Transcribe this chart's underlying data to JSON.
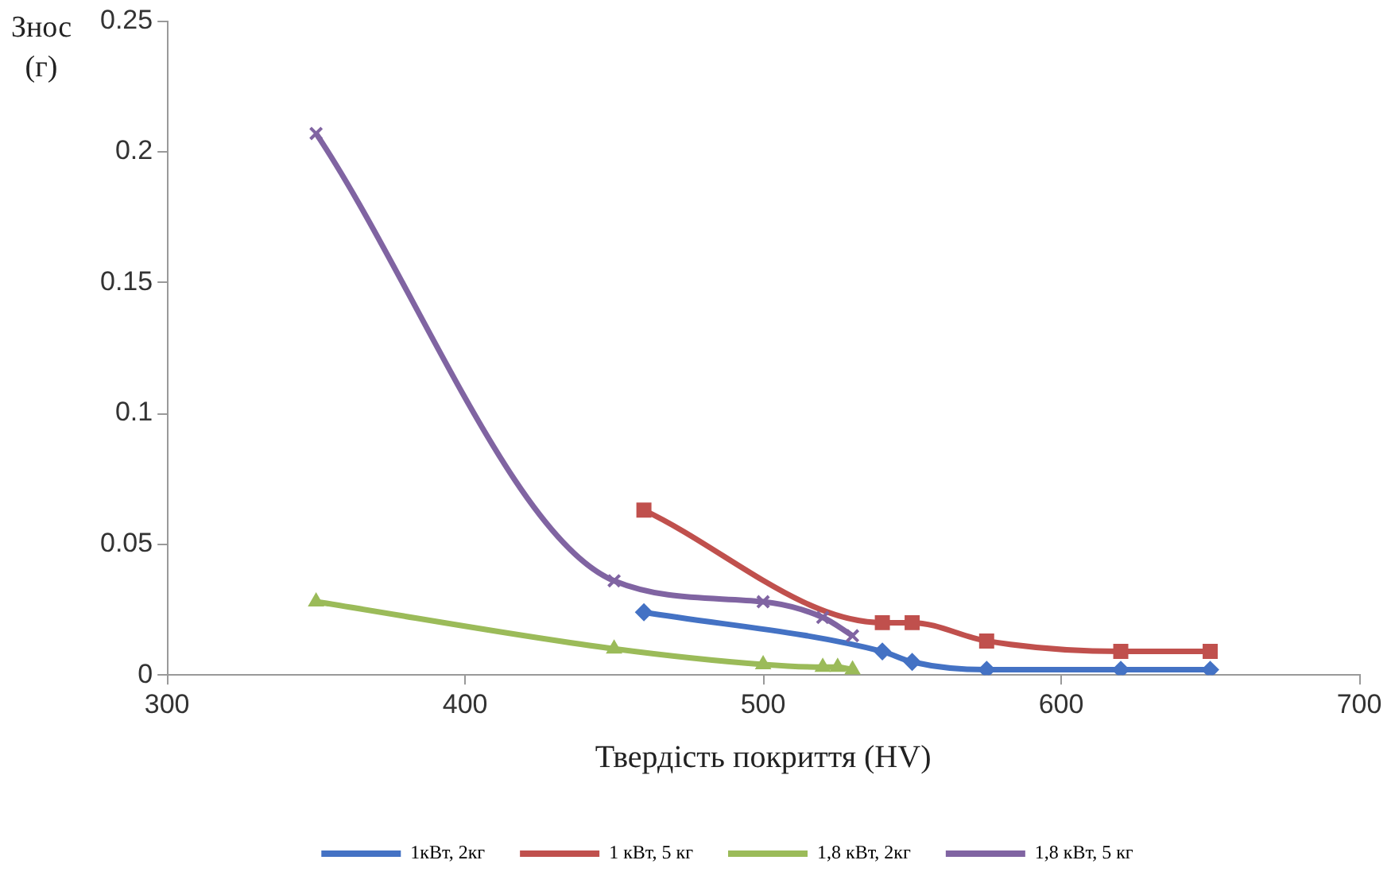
{
  "chart_data": {
    "type": "line",
    "xlabel": "Твердість покриття (HV)",
    "ylabel": "Знос (г)",
    "xlim": [
      300,
      700
    ],
    "xticks": [
      300,
      400,
      500,
      600,
      700
    ],
    "ylim": [
      0,
      0.25
    ],
    "yticks": [
      0,
      0.05,
      0.1,
      0.15,
      0.2,
      0.25
    ],
    "grid": false,
    "legend": "bottom",
    "series": [
      {
        "name": "1кВт, 2кг",
        "color": "#4472c4",
        "marker": "diamond",
        "x": [
          460,
          540,
          550,
          575,
          620,
          650
        ],
        "values": [
          0.024,
          0.009,
          0.005,
          0.002,
          0.002,
          0.002
        ]
      },
      {
        "name": "1 кВт, 5 кг",
        "color": "#c0504d",
        "marker": "square",
        "x": [
          460,
          540,
          550,
          575,
          620,
          650
        ],
        "values": [
          0.063,
          0.02,
          0.02,
          0.013,
          0.009,
          0.009
        ]
      },
      {
        "name": "1,8 кВт, 2кг",
        "color": "#9bbb59",
        "marker": "triangle",
        "x": [
          350,
          450,
          500,
          520,
          525,
          530
        ],
        "values": [
          0.028,
          0.01,
          0.004,
          0.003,
          0.003,
          0.002
        ]
      },
      {
        "name": "1,8 кВт, 5 кг",
        "color": "#8064a2",
        "marker": "cross",
        "x": [
          350,
          450,
          500,
          520,
          530
        ],
        "values": [
          0.207,
          0.036,
          0.028,
          0.022,
          0.015
        ]
      }
    ]
  }
}
